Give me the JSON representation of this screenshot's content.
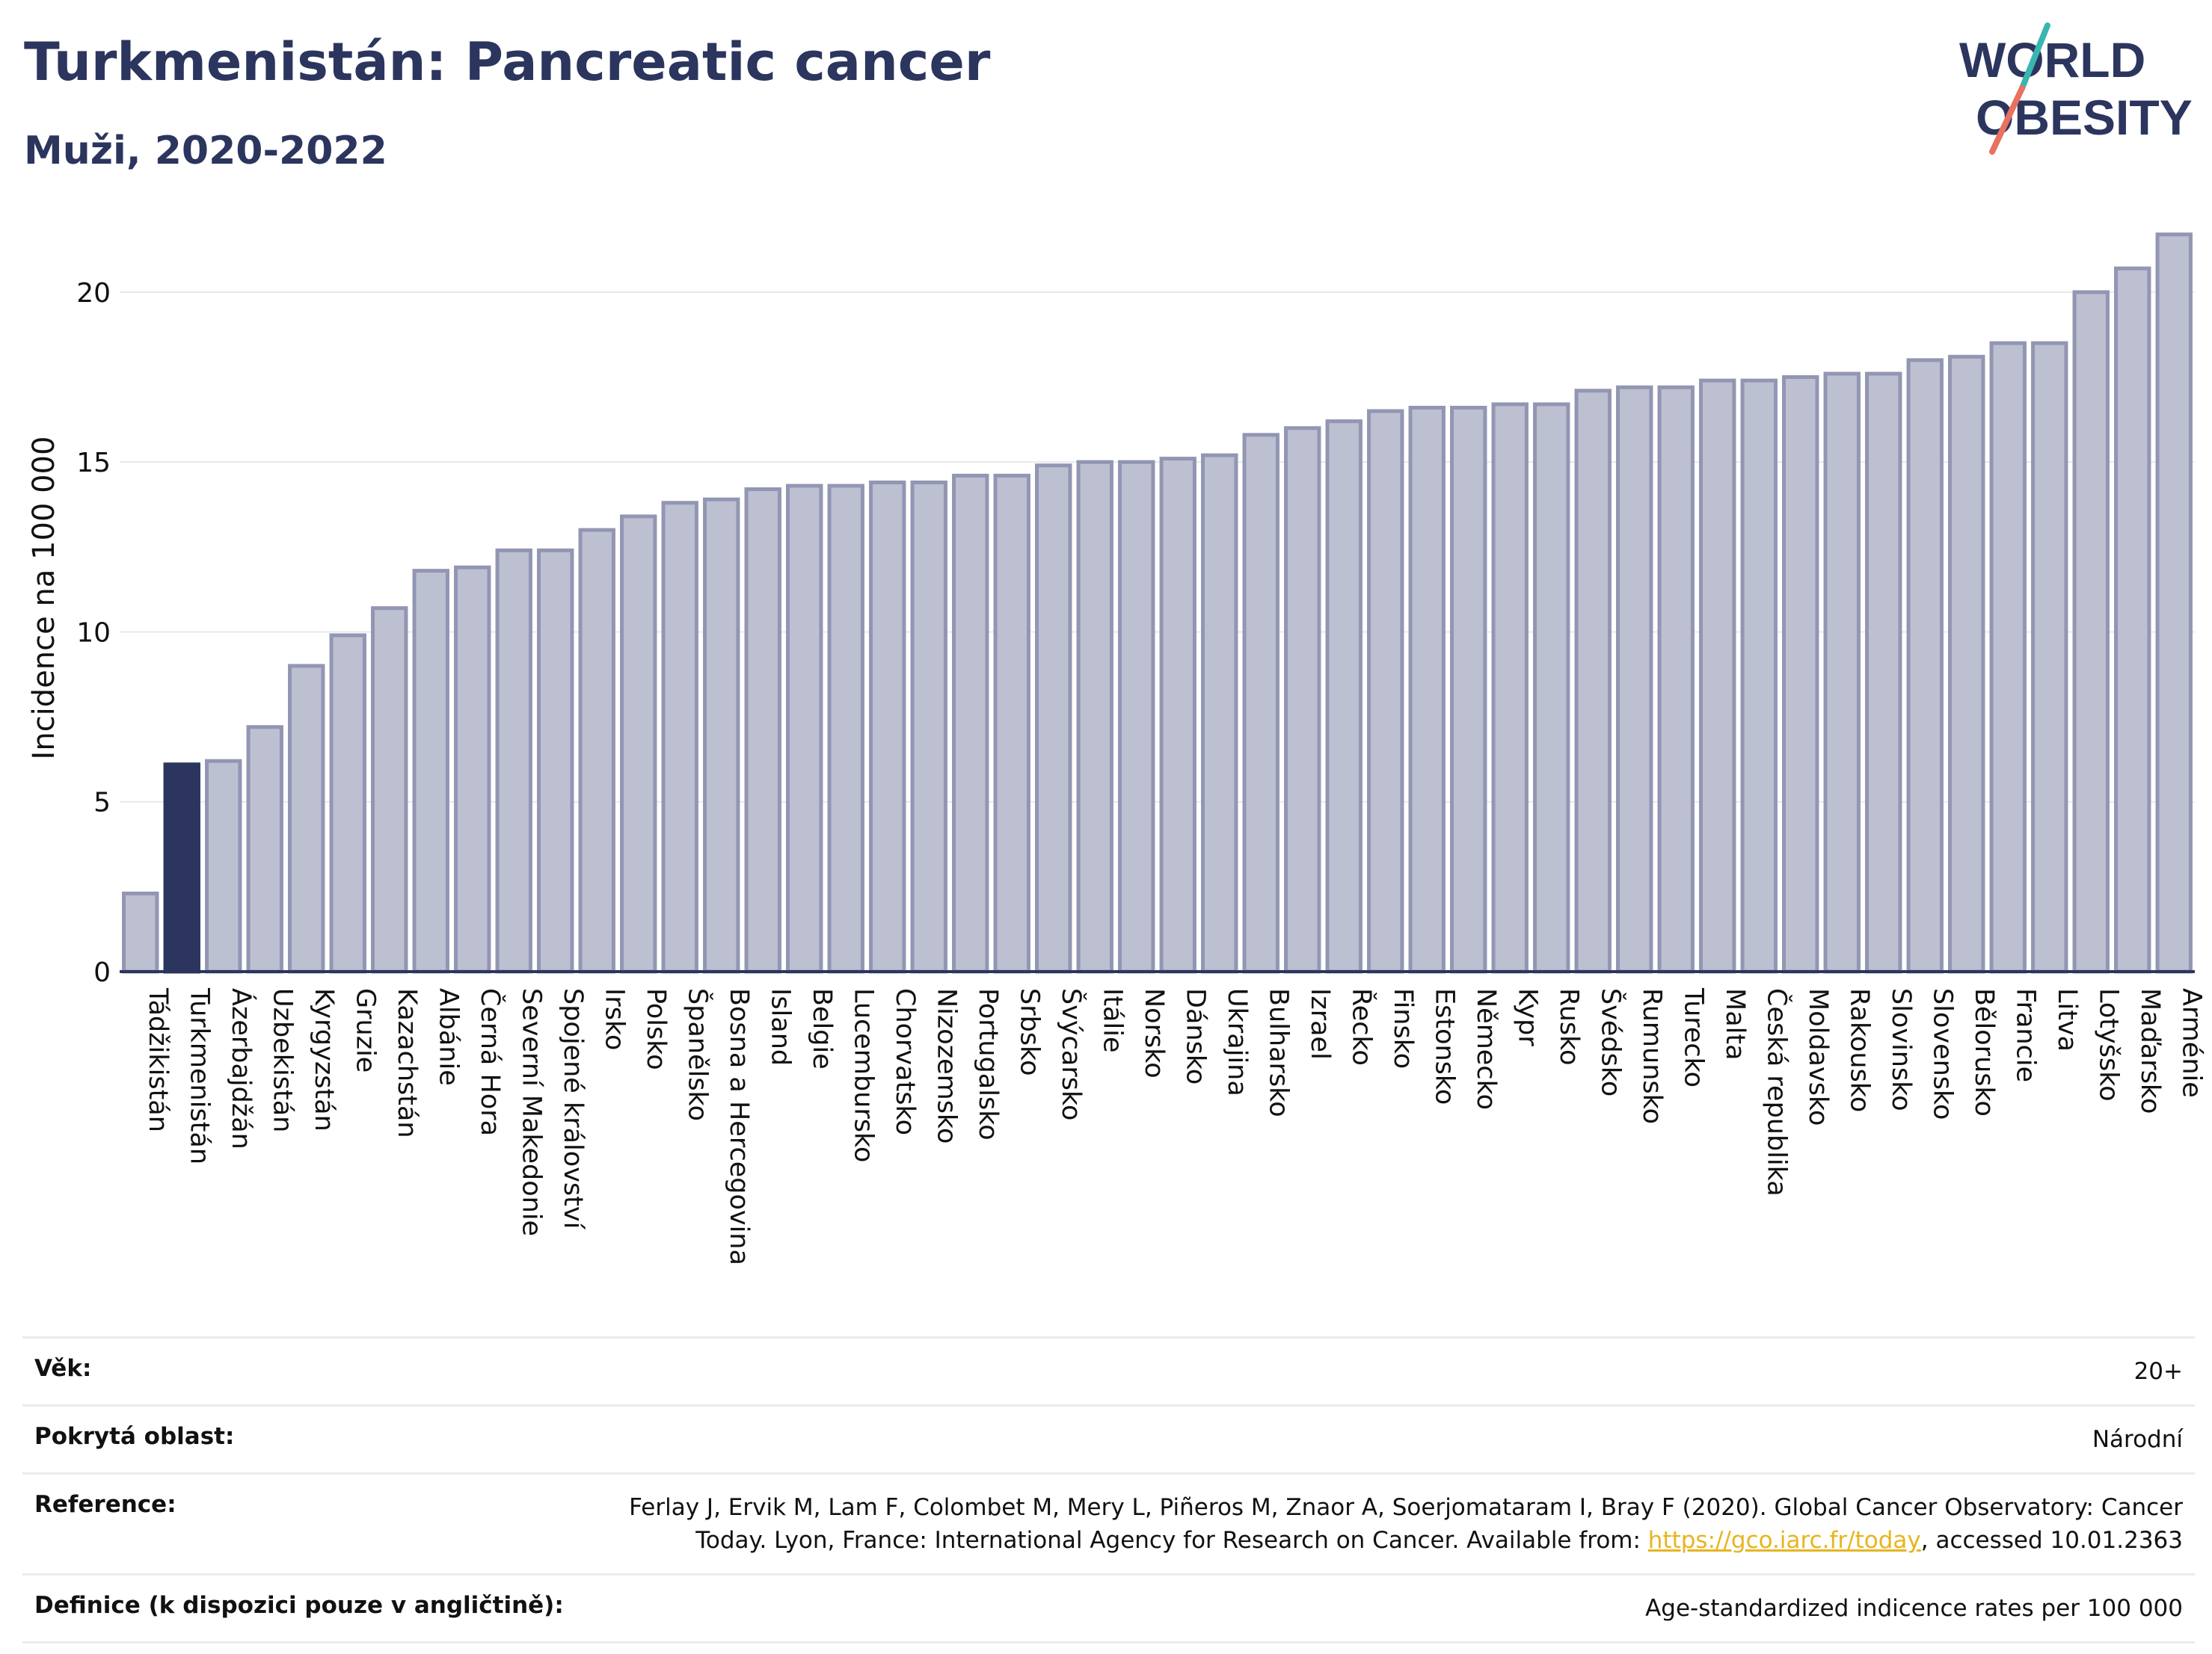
{
  "title": "Turkmenistán: Pancreatic cancer",
  "subtitle": "Muži, 2020-2022",
  "logo": {
    "line1": "WORLD",
    "line2": "OBESITY",
    "colors": {
      "text": "#2b355e",
      "slash_top": "#3ab5b0",
      "slash_bottom": "#e8715f"
    }
  },
  "colors": {
    "bar": "#bcc0d1",
    "bar_stroke": "#9296b3",
    "highlight": "#2b355e",
    "grid": "#e6e8ee",
    "axis": "#2b355e"
  },
  "chart_data": {
    "type": "bar",
    "ylabel": "Incidence na 100 000",
    "xlabel": "",
    "ylim": [
      0,
      22
    ],
    "yticks": [
      0,
      5,
      10,
      15,
      20
    ],
    "grid": true,
    "highlight": "Turkmenistán",
    "categories": [
      "Tádžikistán",
      "Turkmenistán",
      "Ázerbajdžán",
      "Uzbekistán",
      "Kyrgyzstán",
      "Gruzie",
      "Kazachstán",
      "Albánie",
      "Černá Hora",
      "Severní Makedonie",
      "Spojené království",
      "Irsko",
      "Polsko",
      "Španělsko",
      "Bosna a Hercegovina",
      "Island",
      "Belgie",
      "Lucembursko",
      "Chorvatsko",
      "Nizozemsko",
      "Portugalsko",
      "Srbsko",
      "Švýcarsko",
      "Itálie",
      "Norsko",
      "Dánsko",
      "Ukrajina",
      "Bulharsko",
      "Izrael",
      "Řecko",
      "Finsko",
      "Estonsko",
      "Německo",
      "Kypr",
      "Rusko",
      "Švédsko",
      "Rumunsko",
      "Turecko",
      "Malta",
      "Česká republika",
      "Moldavsko",
      "Rakousko",
      "Slovinsko",
      "Slovensko",
      "Bělorusko",
      "Francie",
      "Litva",
      "Lotyšsko",
      "Maďarsko",
      "Arménie"
    ],
    "values": [
      2.3,
      6.1,
      6.2,
      7.2,
      9.0,
      9.9,
      10.7,
      11.8,
      11.9,
      12.4,
      12.4,
      13.0,
      13.4,
      13.8,
      13.9,
      14.2,
      14.3,
      14.3,
      14.4,
      14.4,
      14.6,
      14.6,
      14.9,
      15.0,
      15.0,
      15.1,
      15.2,
      15.8,
      16.0,
      16.2,
      16.5,
      16.6,
      16.6,
      16.7,
      16.7,
      17.1,
      17.2,
      17.2,
      17.4,
      17.4,
      17.5,
      17.6,
      17.6,
      18.0,
      18.1,
      18.5,
      18.5,
      20.0,
      20.7,
      21.7
    ]
  },
  "meta": [
    {
      "label": "Věk:",
      "value": "20+"
    },
    {
      "label": "Pokrytá oblast:",
      "value": "Národní"
    },
    {
      "label": "Reference:",
      "value_pre": "Ferlay J, Ervik M, Lam F, Colombet M, Mery L, Piñeros M, Znaor A, Soerjomataram I, Bray F (2020). Global Cancer Observatory: Cancer Today. Lyon, France: International Agency for Research on Cancer. Available from: ",
      "link": "https://gco.iarc.fr/today",
      "value_post": ", accessed 10.01.2363"
    },
    {
      "label": "Definice (k dispozici pouze v angličtině):",
      "value": "Age-standardized indicence rates per 100 000"
    }
  ]
}
